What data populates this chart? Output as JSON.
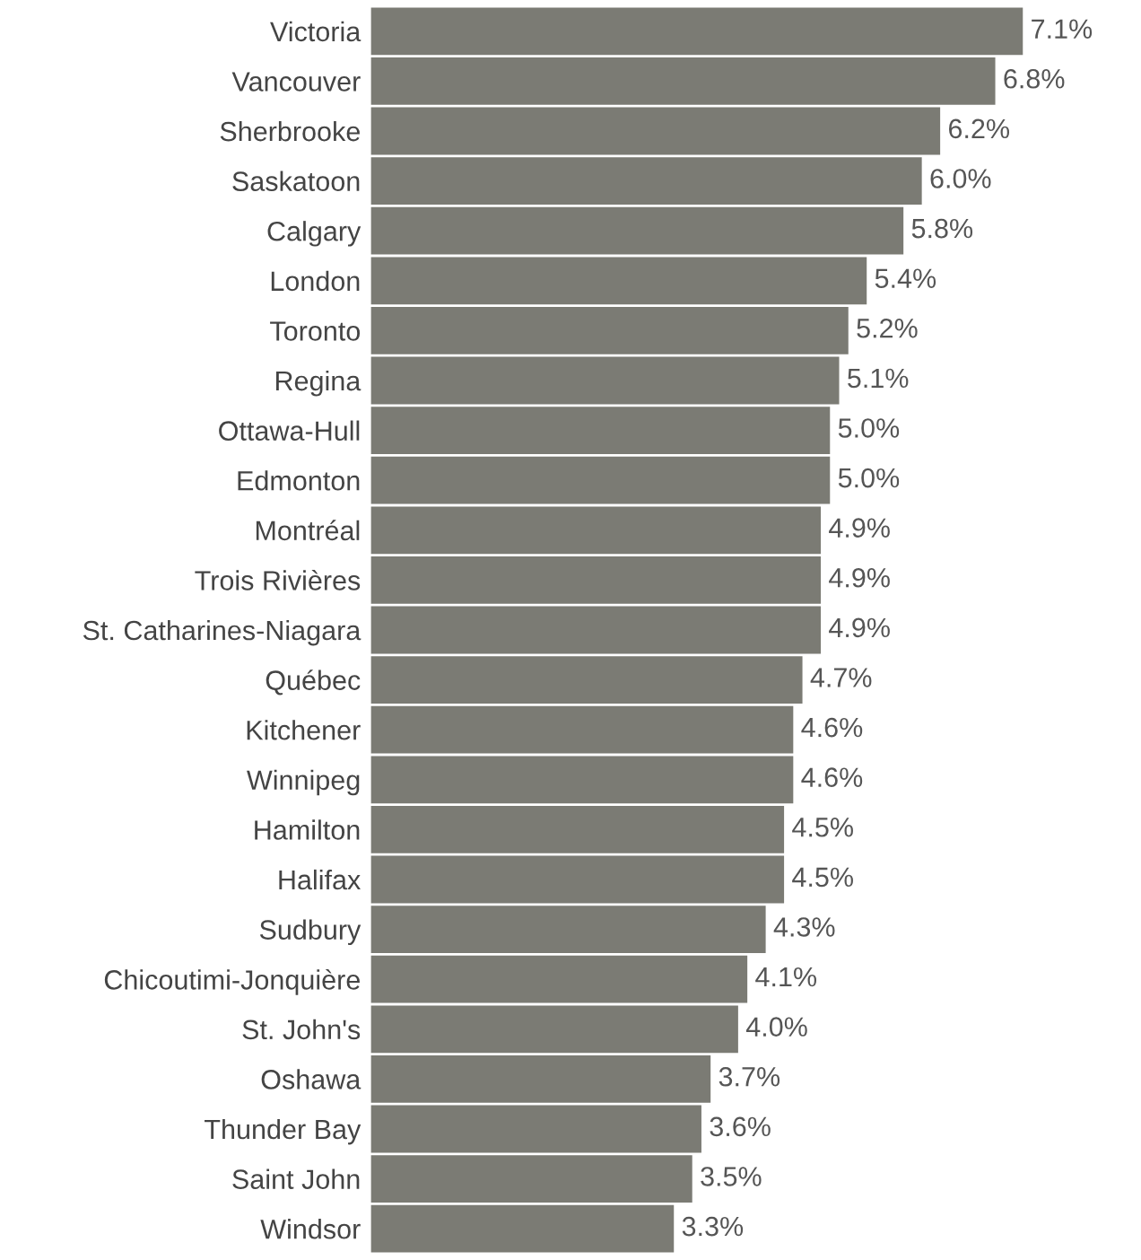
{
  "chart_data": {
    "type": "bar",
    "orientation": "horizontal",
    "categories": [
      "Victoria",
      "Vancouver",
      "Sherbrooke",
      "Saskatoon",
      "Calgary",
      "London",
      "Toronto",
      "Regina",
      "Ottawa-Hull",
      "Edmonton",
      "Montréal",
      "Trois Rivières",
      "St. Catharines-Niagara",
      "Québec",
      "Kitchener",
      "Winnipeg",
      "Hamilton",
      "Halifax",
      "Sudbury",
      "Chicoutimi-Jonquière",
      "St. John's",
      "Oshawa",
      "Thunder Bay",
      "Saint John",
      "Windsor"
    ],
    "values": [
      7.1,
      6.8,
      6.2,
      6.0,
      5.8,
      5.4,
      5.2,
      5.1,
      5.0,
      5.0,
      4.9,
      4.9,
      4.9,
      4.7,
      4.6,
      4.6,
      4.5,
      4.5,
      4.3,
      4.1,
      4.0,
      3.7,
      3.6,
      3.5,
      3.3
    ],
    "value_labels": [
      "7.1%",
      "6.8%",
      "6.2%",
      "6.0%",
      "5.8%",
      "5.4%",
      "5.2%",
      "5.1%",
      "5.0%",
      "5.0%",
      "4.9%",
      "4.9%",
      "4.9%",
      "4.7%",
      "4.6%",
      "4.6%",
      "4.5%",
      "4.5%",
      "4.3%",
      "4.1%",
      "4.0%",
      "3.7%",
      "3.6%",
      "3.5%",
      "3.3%"
    ],
    "color": "#7b7b74",
    "tick_labels": "y",
    "grid": false,
    "legend": false
  }
}
